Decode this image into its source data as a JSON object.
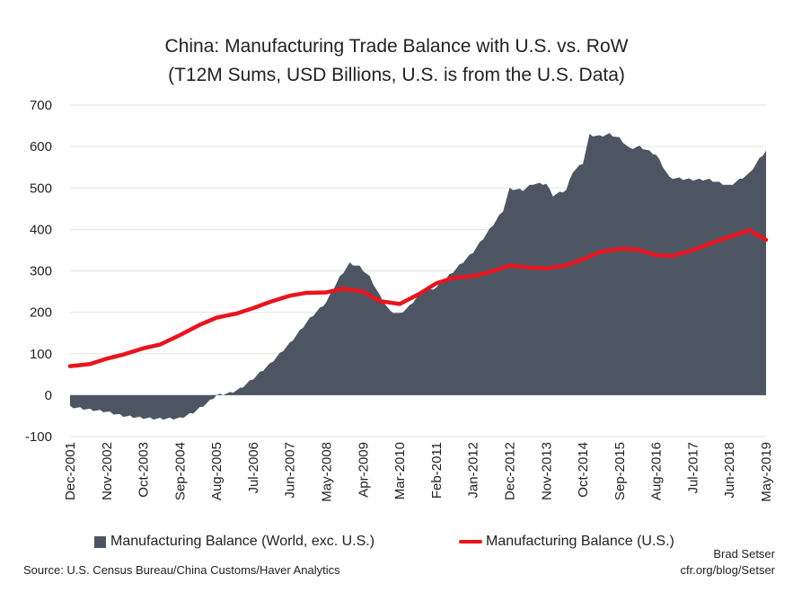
{
  "chart_data": {
    "type": "area",
    "title": "China: Manufacturing Trade Balance with U.S. vs. RoW",
    "subtitle": "(T12M Sums, USD Billions, U.S. is from the U.S. Data)",
    "ylim": [
      -100,
      700
    ],
    "yticks": [
      "700",
      "600",
      "500",
      "400",
      "300",
      "200",
      "100",
      "0",
      "-100"
    ],
    "xticks": [
      "Dec-2001",
      "Nov-2002",
      "Oct-2003",
      "Sep-2004",
      "Aug-2005",
      "Jul-2006",
      "Jun-2007",
      "May-2008",
      "Apr-2009",
      "Mar-2010",
      "Feb-2011",
      "Jan-2012",
      "Dec-2012",
      "Nov-2013",
      "Oct-2014",
      "Sep-2015",
      "Aug-2016",
      "Jul-2017",
      "Jun-2018",
      "May-2019"
    ],
    "x_start": "Dec-2001",
    "x_end": "May-2019",
    "grid": true,
    "series": [
      {
        "name": "Manufacturing Balance (World, exc. U.S.)",
        "type": "area",
        "color": "#4d5563",
        "points": [
          [
            "Dec-2001",
            -28
          ],
          [
            "Jun-2002",
            -35
          ],
          [
            "Nov-2002",
            -40
          ],
          [
            "Apr-2003",
            -50
          ],
          [
            "Oct-2003",
            -55
          ],
          [
            "Feb-2004",
            -57
          ],
          [
            "Sep-2004",
            -56
          ],
          [
            "Jan-2005",
            -42
          ],
          [
            "May-2005",
            -20
          ],
          [
            "Aug-2005",
            0
          ],
          [
            "Dec-2005",
            5
          ],
          [
            "Mar-2006",
            15
          ],
          [
            "Jul-2006",
            40
          ],
          [
            "Dec-2006",
            75
          ],
          [
            "Jun-2007",
            125
          ],
          [
            "Dec-2007",
            185
          ],
          [
            "May-2008",
            225
          ],
          [
            "Sep-2008",
            285
          ],
          [
            "Dec-2008",
            318
          ],
          [
            "Mar-2009",
            310
          ],
          [
            "Jun-2009",
            285
          ],
          [
            "Sep-2009",
            240
          ],
          [
            "Dec-2009",
            203
          ],
          [
            "Mar-2010",
            196
          ],
          [
            "Jun-2010",
            215
          ],
          [
            "Sep-2010",
            245
          ],
          [
            "Feb-2011",
            260
          ],
          [
            "Jun-2011",
            290
          ],
          [
            "Jan-2012",
            345
          ],
          [
            "Jun-2012",
            400
          ],
          [
            "Oct-2012",
            445
          ],
          [
            "Dec-2012",
            498
          ],
          [
            "Apr-2013",
            495
          ],
          [
            "Jul-2013",
            510
          ],
          [
            "Nov-2013",
            510
          ],
          [
            "Jan-2014",
            482
          ],
          [
            "May-2014",
            495
          ],
          [
            "Jul-2014",
            540
          ],
          [
            "Oct-2014",
            560
          ],
          [
            "Dec-2014",
            628
          ],
          [
            "Mar-2015",
            625
          ],
          [
            "Jun-2015",
            630
          ],
          [
            "Sep-2015",
            620
          ],
          [
            "Dec-2015",
            595
          ],
          [
            "Mar-2016",
            600
          ],
          [
            "Aug-2016",
            580
          ],
          [
            "Dec-2016",
            525
          ],
          [
            "Jul-2017",
            520
          ],
          [
            "Dec-2017",
            520
          ],
          [
            "Jun-2018",
            505
          ],
          [
            "Dec-2018",
            535
          ],
          [
            "Mar-2019",
            570
          ],
          [
            "May-2019",
            590
          ]
        ]
      },
      {
        "name": "Manufacturing Balance (U.S.)",
        "type": "line",
        "color": "#e8141e",
        "points": [
          [
            "Dec-2001",
            70
          ],
          [
            "Jun-2002",
            75
          ],
          [
            "Nov-2002",
            88
          ],
          [
            "Apr-2003",
            98
          ],
          [
            "Oct-2003",
            113
          ],
          [
            "Mar-2004",
            122
          ],
          [
            "Sep-2004",
            145
          ],
          [
            "Mar-2005",
            170
          ],
          [
            "Aug-2005",
            187
          ],
          [
            "Feb-2006",
            197
          ],
          [
            "Jul-2006",
            210
          ],
          [
            "Dec-2006",
            225
          ],
          [
            "Jun-2007",
            240
          ],
          [
            "Nov-2007",
            247
          ],
          [
            "May-2008",
            248
          ],
          [
            "Oct-2008",
            257
          ],
          [
            "Apr-2009",
            250
          ],
          [
            "Sep-2009",
            227
          ],
          [
            "Mar-2010",
            220
          ],
          [
            "Sep-2010",
            245
          ],
          [
            "Feb-2011",
            270
          ],
          [
            "Jul-2011",
            283
          ],
          [
            "Jan-2012",
            287
          ],
          [
            "Jun-2012",
            297
          ],
          [
            "Dec-2012",
            313
          ],
          [
            "Jun-2013",
            308
          ],
          [
            "Nov-2013",
            306
          ],
          [
            "May-2014",
            313
          ],
          [
            "Oct-2014",
            328
          ],
          [
            "Mar-2015",
            345
          ],
          [
            "Sep-2015",
            353
          ],
          [
            "Feb-2016",
            352
          ],
          [
            "Aug-2016",
            338
          ],
          [
            "Jan-2017",
            336
          ],
          [
            "Jul-2017",
            350
          ],
          [
            "Jan-2018",
            368
          ],
          [
            "Jun-2018",
            382
          ],
          [
            "Dec-2018",
            398
          ],
          [
            "May-2019",
            375
          ]
        ]
      }
    ]
  },
  "legend": {
    "item1": "Manufacturing Balance (World, exc. U.S.)",
    "item2": "Manufacturing Balance (U.S.)"
  },
  "source": "Source: U.S. Census Bureau/China Customs/Haver Analytics",
  "credit": {
    "name": "Brad Setser",
    "url": "cfr.org/blog/Setser"
  }
}
